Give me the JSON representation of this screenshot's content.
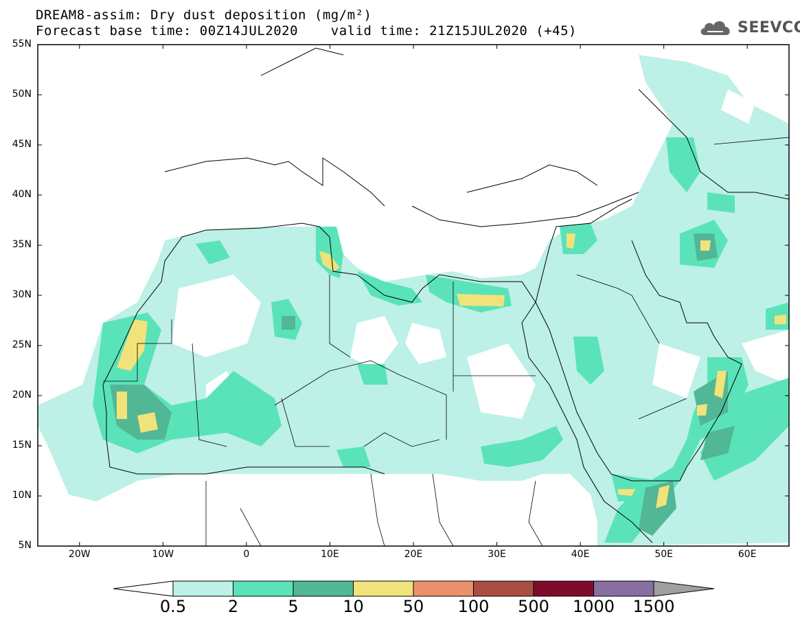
{
  "header": {
    "title": "DREAM8-assim: Dry dust deposition (mg/m²)",
    "subtitle": "Forecast base time: 00Z14JUL2020    valid time: 21Z15JUL2020 (+45)"
  },
  "logo": {
    "text": "SEEVCCC",
    "icon": "cloud-icon"
  },
  "map": {
    "lat_range": [
      5,
      55
    ],
    "lon_range": [
      -25,
      65
    ],
    "lat_labels": [
      "55N",
      "50N",
      "45N",
      "40N",
      "35N",
      "30N",
      "25N",
      "20N",
      "15N",
      "10N",
      "5N"
    ],
    "lon_labels": [
      "20W",
      "10W",
      "0",
      "10E",
      "20E",
      "30E",
      "40E",
      "50E",
      "60E"
    ]
  },
  "colorbar": {
    "levels": [
      "0.5",
      "2",
      "5",
      "10",
      "50",
      "100",
      "500",
      "1000",
      "1500"
    ],
    "colors": [
      "#bdf0e6",
      "#5ae3b9",
      "#52b795",
      "#f1e37a",
      "#e8916b",
      "#a84e42",
      "#800c2c",
      "#896ea1"
    ],
    "under_color": "#ffffff",
    "over_color": "#a0a0a0"
  }
}
